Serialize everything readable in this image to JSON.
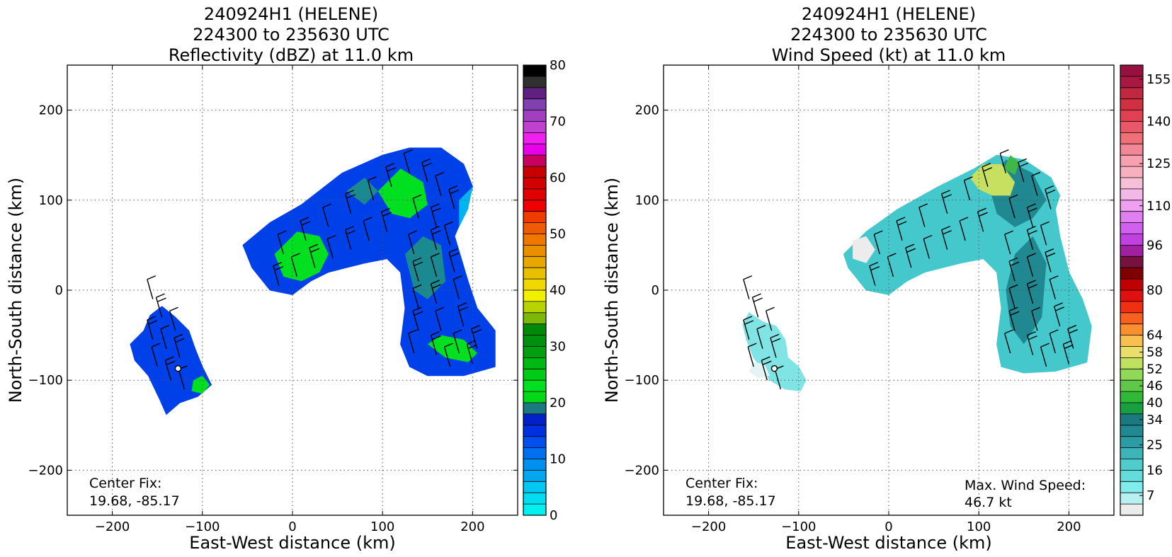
{
  "chart_data": [
    {
      "type": "heatmap",
      "title_lines": [
        "240924H1 (HELENE)",
        "224300 to 235630 UTC",
        "Reflectivity (dBZ) at 11.0 km"
      ],
      "xlabel": "East-West distance (km)",
      "ylabel": "North-South distance (km)",
      "xlim": [
        -250,
        250
      ],
      "ylim": [
        -250,
        250
      ],
      "xticks": [
        -200,
        -100,
        0,
        100,
        200
      ],
      "yticks": [
        -200,
        -100,
        0,
        100,
        200
      ],
      "grid": true,
      "center_fix_label": "Center Fix:",
      "center_fix_value": "19.68, -85.17",
      "center_fix_point": [
        -127,
        -87
      ],
      "colorbar": {
        "min": 0,
        "max": 80,
        "ticks": [
          0,
          10,
          20,
          30,
          40,
          50,
          60,
          70,
          80
        ],
        "tick_labels": [
          "0",
          "10",
          "20",
          "30",
          "40",
          "50",
          "60",
          "70",
          "80"
        ],
        "colors": [
          "#00f0f0",
          "#00dcf0",
          "#00c8f0",
          "#00a8f0",
          "#0090f0",
          "#0070f0",
          "#0050f0",
          "#0030e0",
          "#0020c8",
          "#1a7a80",
          "#00d818",
          "#00e020",
          "#00cc18",
          "#00b814",
          "#00a010",
          "#009010",
          "#008a08",
          "#7cb808",
          "#b8d400",
          "#f0f000",
          "#f0d800",
          "#e8c000",
          "#e8a800",
          "#e89000",
          "#f07800",
          "#f05a00",
          "#f03c00",
          "#f00000",
          "#e00000",
          "#d40000",
          "#c80000",
          "#c80060",
          "#e800e8",
          "#f020f0",
          "#c040d0",
          "#a040c0",
          "#8040b0",
          "#602080",
          "#303030",
          "#000000"
        ]
      },
      "regions": [
        {
          "name": "main band",
          "fill": "#0040e8",
          "points": [
            [
              -55,
              50
            ],
            [
              -25,
              75
            ],
            [
              10,
              95
            ],
            [
              55,
              130
            ],
            [
              100,
              150
            ],
            [
              130,
              158
            ],
            [
              165,
              158
            ],
            [
              190,
              140
            ],
            [
              200,
              115
            ],
            [
              195,
              95
            ],
            [
              180,
              60
            ],
            [
              195,
              10
            ],
            [
              205,
              -20
            ],
            [
              225,
              -45
            ],
            [
              225,
              -85
            ],
            [
              190,
              -95
            ],
            [
              150,
              -95
            ],
            [
              130,
              -85
            ],
            [
              120,
              -60
            ],
            [
              125,
              -20
            ],
            [
              120,
              20
            ],
            [
              105,
              35
            ],
            [
              80,
              30
            ],
            [
              60,
              25
            ],
            [
              40,
              20
            ],
            [
              20,
              10
            ],
            [
              0,
              -5
            ],
            [
              -25,
              0
            ],
            [
              -45,
              25
            ]
          ]
        },
        {
          "name": "west cell",
          "fill": "#0040e8",
          "points": [
            [
              -180,
              -60
            ],
            [
              -165,
              -45
            ],
            [
              -158,
              -28
            ],
            [
              -145,
              -18
            ],
            [
              -130,
              -30
            ],
            [
              -115,
              -45
            ],
            [
              -108,
              -65
            ],
            [
              -100,
              -85
            ],
            [
              -90,
              -105
            ],
            [
              -105,
              -118
            ],
            [
              -125,
              -125
            ],
            [
              -140,
              -138
            ],
            [
              -148,
              -120
            ],
            [
              -160,
              -95
            ],
            [
              -175,
              -78
            ]
          ]
        }
      ],
      "patches": [
        {
          "level": "green",
          "fill": "#00e020",
          "points": [
            [
              -20,
              40
            ],
            [
              5,
              65
            ],
            [
              30,
              60
            ],
            [
              40,
              40
            ],
            [
              30,
              20
            ],
            [
              10,
              10
            ],
            [
              -10,
              15
            ]
          ]
        },
        {
          "level": "green",
          "fill": "#00e020",
          "points": [
            [
              95,
              110
            ],
            [
              120,
              135
            ],
            [
              145,
              120
            ],
            [
              150,
              95
            ],
            [
              130,
              80
            ],
            [
              110,
              85
            ]
          ]
        },
        {
          "level": "green",
          "fill": "#00e020",
          "points": [
            [
              150,
              -60
            ],
            [
              170,
              -75
            ],
            [
              195,
              -80
            ],
            [
              205,
              -70
            ],
            [
              190,
              -55
            ],
            [
              165,
              -50
            ]
          ]
        },
        {
          "level": "green",
          "fill": "#00e020",
          "points": [
            [
              -110,
              -100
            ],
            [
              -100,
              -95
            ],
            [
              -92,
              -105
            ],
            [
              -100,
              -115
            ],
            [
              -112,
              -112
            ]
          ]
        },
        {
          "level": "teal",
          "fill": "#1a8a90",
          "points": [
            [
              125,
              40
            ],
            [
              145,
              60
            ],
            [
              165,
              50
            ],
            [
              170,
              10
            ],
            [
              150,
              -10
            ],
            [
              135,
              0
            ]
          ]
        },
        {
          "level": "teal",
          "fill": "#1a8a90",
          "points": [
            [
              60,
              110
            ],
            [
              80,
              125
            ],
            [
              95,
              110
            ],
            [
              80,
              95
            ]
          ]
        },
        {
          "level": "light-blue",
          "fill": "#00b4f0",
          "points": [
            [
              185,
              100
            ],
            [
              200,
              115
            ],
            [
              195,
              90
            ],
            [
              185,
              70
            ]
          ]
        }
      ]
    },
    {
      "type": "heatmap",
      "title_lines": [
        "240924H1 (HELENE)",
        "224300 to 235630 UTC",
        "Wind Speed (kt) at 11.0 km"
      ],
      "xlabel": "East-West distance (km)",
      "ylabel": "North-South distance (km)",
      "xlim": [
        -250,
        250
      ],
      "ylim": [
        -250,
        250
      ],
      "xticks": [
        -200,
        -100,
        0,
        100,
        200
      ],
      "yticks": [
        -200,
        -100,
        0,
        100,
        200
      ],
      "grid": true,
      "center_fix_label": "Center Fix:",
      "center_fix_value": "19.68, -85.17",
      "center_fix_point": [
        -127,
        -87
      ],
      "max_wind_label": "Max. Wind Speed:",
      "max_wind_value": "46.7 kt",
      "colorbar": {
        "min": 0,
        "max": 160,
        "ticks": [
          7,
          16,
          25,
          34,
          40,
          46,
          52,
          58,
          64,
          80,
          96,
          110,
          125,
          140,
          155
        ],
        "tick_labels": [
          "7",
          "16",
          "25",
          "34",
          "40",
          "46",
          "52",
          "58",
          "64",
          "80",
          "96",
          "110",
          "125",
          "140",
          "155"
        ],
        "colors": [
          "#ececec",
          "#b8f0f0",
          "#80ecec",
          "#64dcdc",
          "#50cccc",
          "#3cb4b8",
          "#2c9ca4",
          "#208a90",
          "#1a7a80",
          "#18a040",
          "#30b838",
          "#60c848",
          "#90d858",
          "#c0e060",
          "#e8e068",
          "#f8c050",
          "#f89030",
          "#f86020",
          "#f03010",
          "#e01010",
          "#c00000",
          "#800000",
          "#781040",
          "#a020a0",
          "#c040e0",
          "#d060f0",
          "#e080f0",
          "#f0a0f0",
          "#f4b8e8",
          "#f8c0d8",
          "#f8b0c0",
          "#f8a0b0",
          "#f08898",
          "#f07078",
          "#e85868",
          "#e04050",
          "#d03040",
          "#c02840",
          "#a81840",
          "#981040"
        ]
      },
      "regions": [
        {
          "name": "main band",
          "fill": "#44c8cc",
          "points": [
            [
              -50,
              40
            ],
            [
              -25,
              65
            ],
            [
              10,
              90
            ],
            [
              55,
              115
            ],
            [
              95,
              135
            ],
            [
              120,
              150
            ],
            [
              150,
              145
            ],
            [
              180,
              125
            ],
            [
              190,
              105
            ],
            [
              185,
              90
            ],
            [
              190,
              60
            ],
            [
              200,
              20
            ],
            [
              215,
              -10
            ],
            [
              225,
              -40
            ],
            [
              220,
              -80
            ],
            [
              185,
              -90
            ],
            [
              150,
              -92
            ],
            [
              125,
              -85
            ],
            [
              120,
              -60
            ],
            [
              125,
              -20
            ],
            [
              120,
              20
            ],
            [
              105,
              35
            ],
            [
              80,
              30
            ],
            [
              60,
              25
            ],
            [
              40,
              20
            ],
            [
              20,
              10
            ],
            [
              0,
              -5
            ],
            [
              -25,
              0
            ],
            [
              -45,
              25
            ]
          ]
        },
        {
          "name": "west cell",
          "fill": "#80e4e4",
          "points": [
            [
              -155,
              -25
            ],
            [
              -140,
              -35
            ],
            [
              -125,
              -40
            ],
            [
              -115,
              -55
            ],
            [
              -112,
              -75
            ],
            [
              -100,
              -85
            ],
            [
              -92,
              -100
            ],
            [
              -98,
              -112
            ],
            [
              -115,
              -110
            ],
            [
              -132,
              -100
            ],
            [
              -140,
              -88
            ],
            [
              -150,
              -75
            ],
            [
              -158,
              -55
            ],
            [
              -162,
              -38
            ]
          ]
        }
      ],
      "patches": [
        {
          "level": "light-gray",
          "fill": "#ececec",
          "points": [
            [
              -40,
              55
            ],
            [
              -25,
              60
            ],
            [
              -15,
              45
            ],
            [
              -25,
              30
            ],
            [
              -40,
              35
            ]
          ]
        },
        {
          "level": "dark-teal",
          "fill": "#1f8890",
          "points": [
            [
              110,
              120
            ],
            [
              130,
              145
            ],
            [
              160,
              130
            ],
            [
              175,
              100
            ],
            [
              160,
              80
            ],
            [
              140,
              70
            ],
            [
              120,
              85
            ]
          ]
        },
        {
          "level": "dark-teal",
          "fill": "#1f8890",
          "points": [
            [
              140,
              40
            ],
            [
              160,
              60
            ],
            [
              175,
              30
            ],
            [
              170,
              -30
            ],
            [
              150,
              -60
            ],
            [
              135,
              -40
            ],
            [
              130,
              0
            ]
          ]
        },
        {
          "level": "yellow-green",
          "fill": "#c8e060",
          "points": [
            [
              90,
              125
            ],
            [
              105,
              140
            ],
            [
              125,
              140
            ],
            [
              140,
              120
            ],
            [
              135,
              105
            ],
            [
              115,
              105
            ],
            [
              100,
              112
            ]
          ]
        },
        {
          "level": "green",
          "fill": "#40b848",
          "points": [
            [
              128,
              135
            ],
            [
              135,
              150
            ],
            [
              145,
              142
            ],
            [
              140,
              128
            ]
          ]
        },
        {
          "level": "light-gray",
          "fill": "#e4f4f4",
          "points": [
            [
              -150,
              -80
            ],
            [
              -138,
              -82
            ],
            [
              -132,
              -95
            ],
            [
              -145,
              -98
            ],
            [
              -155,
              -90
            ]
          ]
        }
      ]
    }
  ]
}
